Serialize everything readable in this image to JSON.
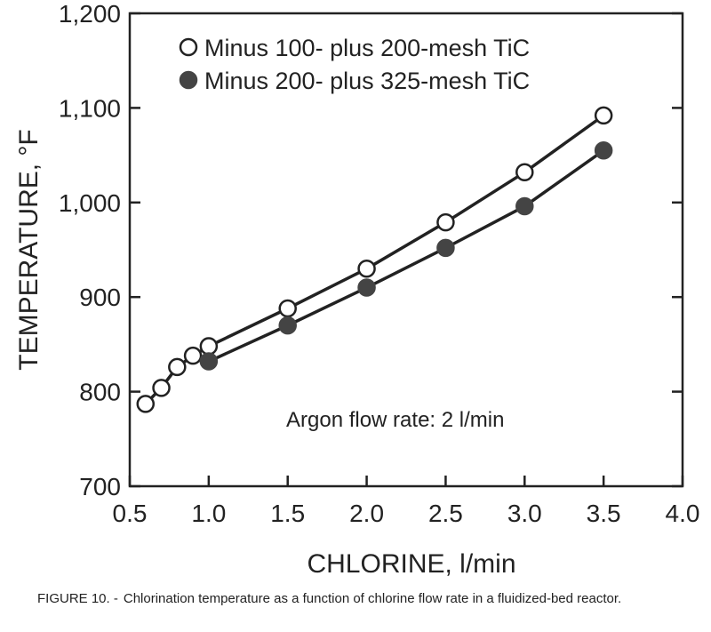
{
  "chart_data": {
    "type": "line",
    "xlabel": "CHLORINE, l/min",
    "ylabel": "TEMPERATURE, °F",
    "xlim": [
      0.5,
      4.0
    ],
    "ylim": [
      700,
      1200
    ],
    "xticks": [
      "0.5",
      "1.0",
      "1.5",
      "2.0",
      "2.5",
      "3.0",
      "3.5",
      "4.0"
    ],
    "yticks": [
      "700",
      "800",
      "900",
      "1,000",
      "1,100",
      "1,200"
    ],
    "series": [
      {
        "name": "Minus 100- plus 200-mesh TiC",
        "marker": "open-circle",
        "x": [
          0.6,
          0.7,
          0.8,
          0.9,
          1.0,
          1.5,
          2.0,
          2.5,
          3.0,
          3.5
        ],
        "y": [
          787,
          804,
          826,
          838,
          848,
          888,
          930,
          979,
          1032,
          1092
        ]
      },
      {
        "name": "Minus 200- plus 325-mesh TiC",
        "marker": "filled-circle",
        "x": [
          1.0,
          1.5,
          2.0,
          2.5,
          3.0,
          3.5
        ],
        "y": [
          832,
          870,
          910,
          952,
          996,
          1055
        ]
      }
    ],
    "annotation": "Argon flow rate:  2 l/min",
    "legend_position": "top-left",
    "grid": false
  },
  "caption": {
    "label": "FIGURE 10. -",
    "text": "Chlorination temperature as a function of chlorine flow rate in a fluidized-bed reactor."
  },
  "colors": {
    "ink": "#222222",
    "open_marker_fill": "#ffffff",
    "filled_marker": "#444444"
  }
}
